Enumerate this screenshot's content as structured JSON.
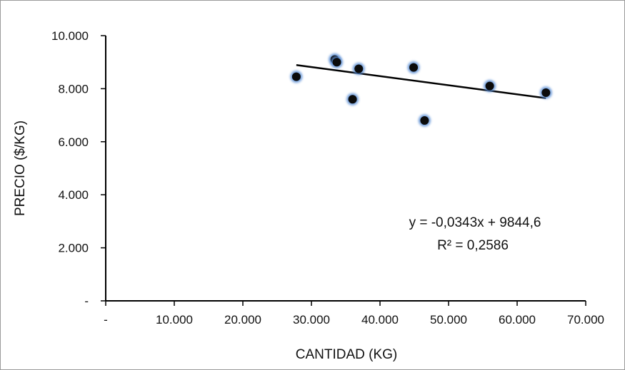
{
  "chart_data": {
    "type": "scatter",
    "xlabel": "CANTIDAD (KG)",
    "ylabel": "PRECIO ($/KG)",
    "xlim": [
      0,
      70000
    ],
    "ylim": [
      0,
      10000
    ],
    "x_ticks": [
      "-",
      "10.000",
      "20.000",
      "30.000",
      "40.000",
      "50.000",
      "60.000",
      "70.000"
    ],
    "y_ticks": [
      "-",
      "2.000",
      "4.000",
      "6.000",
      "8.000",
      "10.000"
    ],
    "points": [
      {
        "x": 27800,
        "y": 8450
      },
      {
        "x": 33400,
        "y": 9100
      },
      {
        "x": 33700,
        "y": 9000
      },
      {
        "x": 36000,
        "y": 7600
      },
      {
        "x": 36900,
        "y": 8750
      },
      {
        "x": 44900,
        "y": 8800
      },
      {
        "x": 46500,
        "y": 6800
      },
      {
        "x": 56000,
        "y": 8100
      },
      {
        "x": 64200,
        "y": 7850
      }
    ],
    "trendline": {
      "slope": -0.0343,
      "intercept": 9844.6,
      "x_start": 27800,
      "x_end": 64200
    },
    "equation_lines": [
      "y = -0,0343x + 9844,6",
      "R² = 0,2586"
    ],
    "grid": false,
    "legend": "none",
    "colors": {
      "marker": "#0b0b0b",
      "marker_halo": "#5b8fd6",
      "trendline": "#000000",
      "axis": "#000000"
    }
  }
}
